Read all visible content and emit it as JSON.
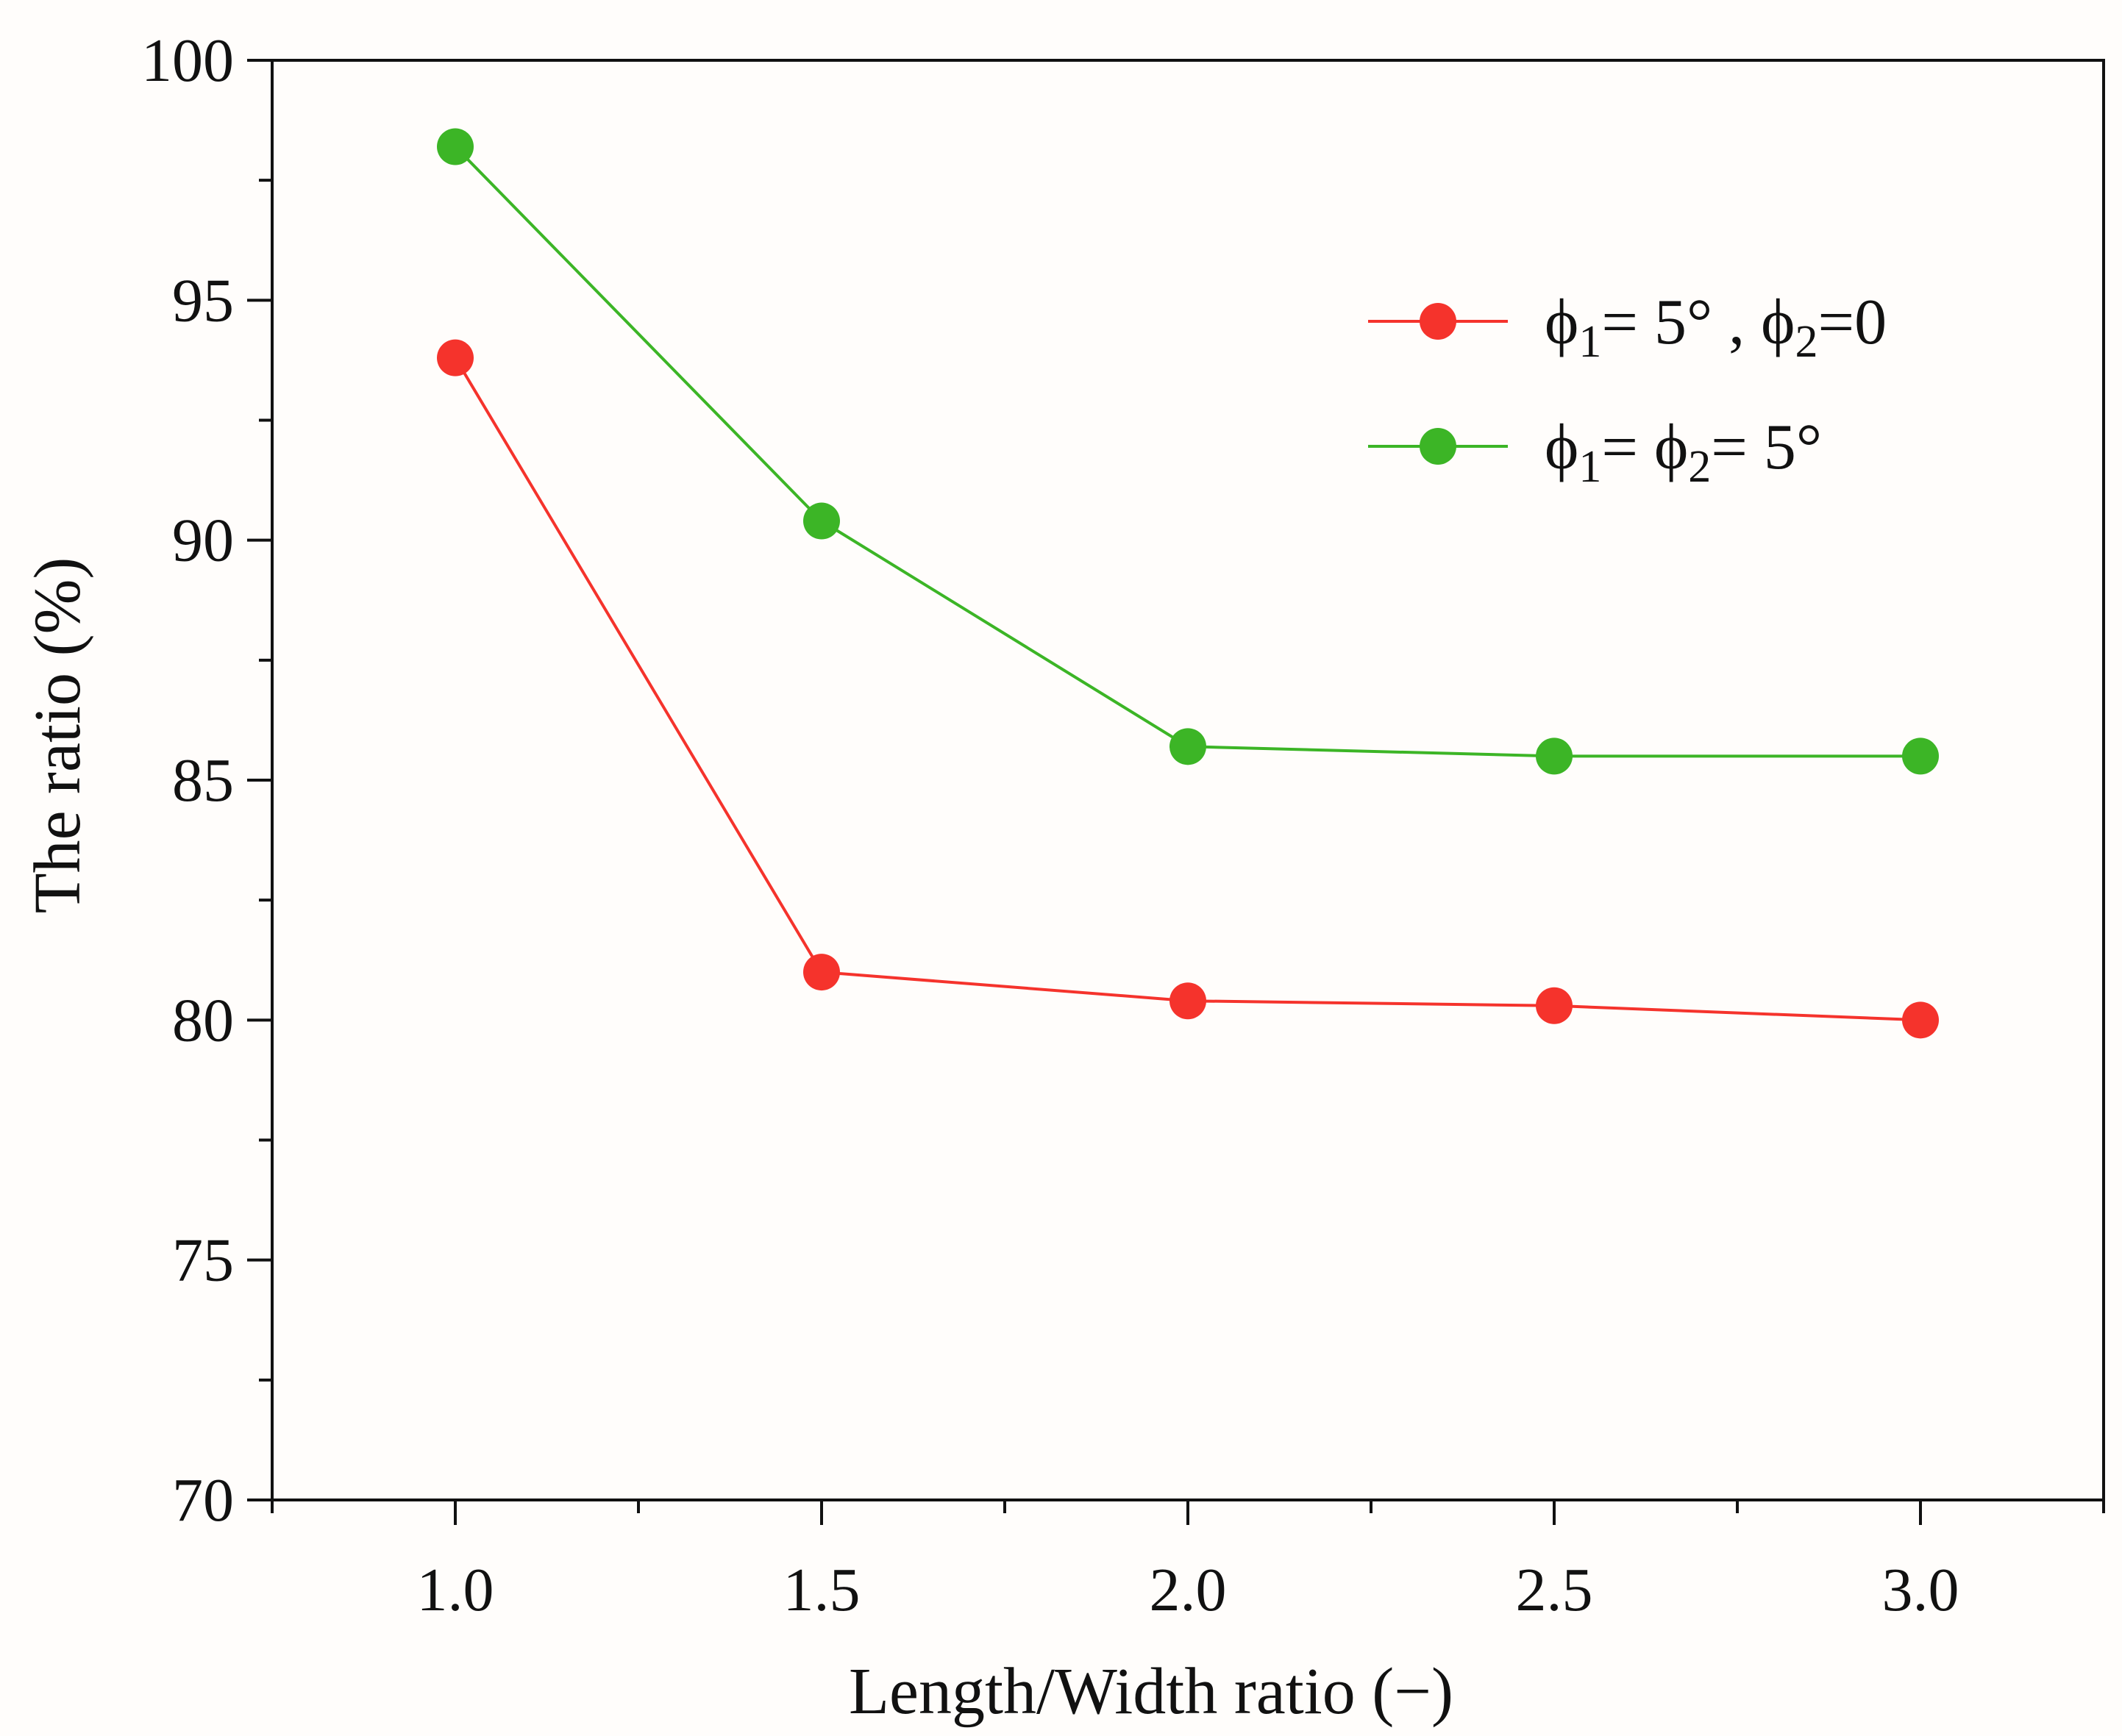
{
  "chart_data": {
    "type": "line",
    "title": "",
    "xlabel": "Length/Width ratio (−)",
    "ylabel": "The ratio (%)",
    "xlim": [
      0.75,
      3.25
    ],
    "ylim": [
      70,
      100
    ],
    "x": [
      1.0,
      1.5,
      2.0,
      2.5,
      3.0
    ],
    "x_ticks": [
      "1.0",
      "1.5",
      "2.0",
      "2.5",
      "3.0"
    ],
    "y_ticks": [
      "70",
      "75",
      "80",
      "85",
      "90",
      "95",
      "100"
    ],
    "grid": false,
    "legend_position": "top-right",
    "series": [
      {
        "name": "ϕ1= 5° , ϕ2=0",
        "legend_parts": [
          "ϕ",
          "1",
          "= 5° , ",
          "ϕ",
          "2",
          "=0"
        ],
        "color": "#f5332c",
        "values": [
          93.8,
          81.0,
          80.4,
          80.3,
          80.0
        ]
      },
      {
        "name": "ϕ1= ϕ2= 5°",
        "legend_parts": [
          "ϕ",
          "1",
          "= ",
          "ϕ",
          "2",
          "= 5°"
        ],
        "color": "#3cb526",
        "values": [
          98.2,
          90.4,
          85.7,
          85.5,
          85.5
        ]
      }
    ]
  }
}
